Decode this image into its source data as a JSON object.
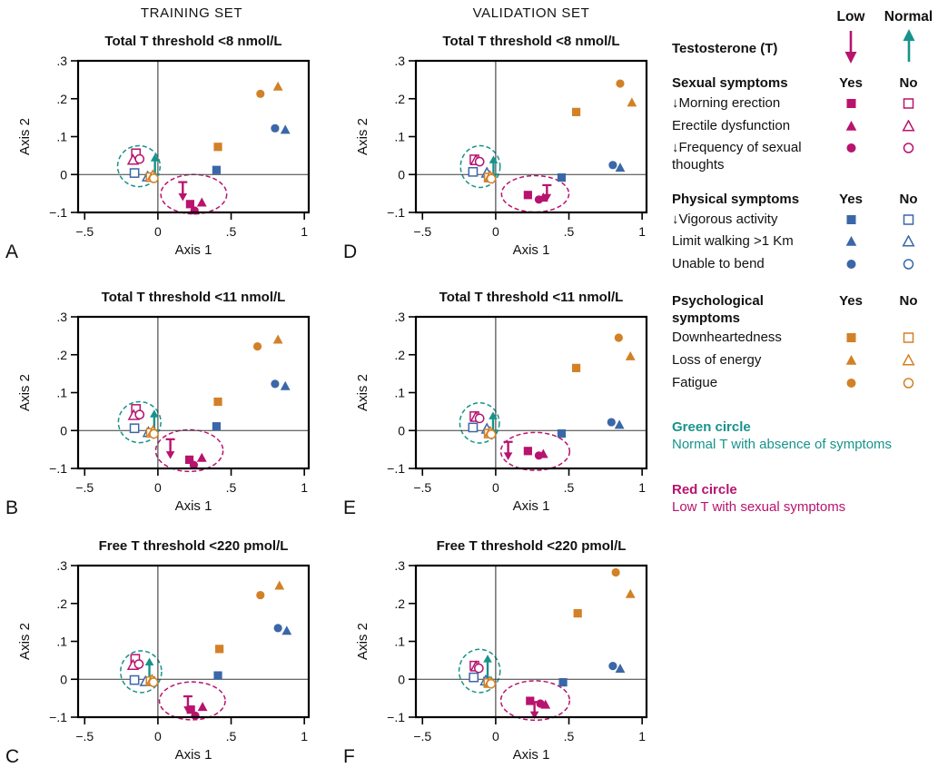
{
  "columns": {
    "training": "TRAINING SET",
    "validation": "VALIDATION SET"
  },
  "colors": {
    "pink": "#b8136e",
    "blue": "#3a67a8",
    "orange": "#d28127",
    "teal": "#17938b",
    "text": "#111111"
  },
  "legend": {
    "testosterone": {
      "label": "Testosterone (T)",
      "low": "Low",
      "normal": "Normal"
    },
    "groups": [
      {
        "title": "Sexual symptoms",
        "yes": "Yes",
        "no": "No",
        "color": "pink",
        "rows": [
          {
            "label": "↓Morning erection",
            "shape": "square"
          },
          {
            "label": "Erectile dysfunction",
            "shape": "triangle"
          },
          {
            "label": "↓Frequency of sexual thoughts",
            "shape": "circle"
          }
        ]
      },
      {
        "title": "Physical symptoms",
        "yes": "Yes",
        "no": "No",
        "color": "blue",
        "rows": [
          {
            "label": "↓Vigorous activity",
            "shape": "square"
          },
          {
            "label": "Limit walking >1 Km",
            "shape": "triangle"
          },
          {
            "label": "Unable to bend",
            "shape": "circle"
          }
        ]
      },
      {
        "title": "Psychological symptoms",
        "yes": "Yes",
        "no": "No",
        "color": "orange",
        "rows": [
          {
            "label": "Downheartedness",
            "shape": "square"
          },
          {
            "label": "Loss of energy",
            "shape": "triangle"
          },
          {
            "label": "Fatigue",
            "shape": "circle"
          }
        ]
      }
    ],
    "circles": [
      {
        "title": "Green circle",
        "desc": "Normal T with absence of symptoms",
        "color": "teal"
      },
      {
        "title": "Red circle",
        "desc": "Low T with sexual symptoms",
        "color": "pink"
      }
    ]
  },
  "axes": {
    "xlabel": "Axis 1",
    "ylabel": "Axis 2",
    "xlim": [
      -0.545,
      1.03
    ],
    "ylim": [
      -0.1,
      0.3
    ],
    "xticks": [
      {
        "v": -0.5,
        "label": "−.5"
      },
      {
        "v": 0,
        "label": "0"
      },
      {
        "v": 0.5,
        "label": ".5"
      },
      {
        "v": 1,
        "label": "1"
      }
    ],
    "yticks": [
      {
        "v": 0.3,
        "label": ".3"
      },
      {
        "v": 0.2,
        "label": ".2"
      },
      {
        "v": 0.1,
        "label": ".1"
      },
      {
        "v": 0,
        "label": "0"
      },
      {
        "v": -0.1,
        "label": "−.1"
      }
    ]
  },
  "point_format": [
    "x",
    "y",
    "color",
    "shape",
    "filled"
  ],
  "chart_data": [
    {
      "type": "scatter",
      "id": "A",
      "set": "training",
      "title": "Total T threshold <8 nmol/L",
      "points": [
        [
          0.7,
          0.213,
          "orange",
          "circle",
          1
        ],
        [
          0.82,
          0.232,
          "orange",
          "triangle",
          1
        ],
        [
          0.8,
          0.122,
          "blue",
          "circle",
          1
        ],
        [
          0.87,
          0.118,
          "blue",
          "triangle",
          1
        ],
        [
          0.41,
          0.073,
          "orange",
          "square",
          1
        ],
        [
          0.4,
          0.012,
          "blue",
          "square",
          1
        ],
        [
          0.22,
          -0.078,
          "pink",
          "square",
          1
        ],
        [
          0.3,
          -0.074,
          "pink",
          "triangle",
          1
        ],
        [
          0.25,
          -0.095,
          "pink",
          "circle",
          1
        ],
        [
          -0.15,
          0.056,
          "pink",
          "square",
          0
        ],
        [
          -0.17,
          0.038,
          "pink",
          "triangle",
          0
        ],
        [
          -0.125,
          0.041,
          "pink",
          "circle",
          0
        ],
        [
          -0.16,
          0.004,
          "blue",
          "square",
          0
        ],
        [
          -0.07,
          -0.006,
          "blue",
          "triangle",
          0
        ],
        [
          -0.05,
          -0.007,
          "orange",
          "square",
          0
        ],
        [
          -0.035,
          -0.003,
          "orange",
          "triangle",
          0
        ],
        [
          -0.028,
          -0.01,
          "orange",
          "circle",
          0
        ]
      ],
      "arrows": [
        {
          "x": -0.02,
          "from": 0.0,
          "to": 0.055,
          "color": "teal"
        },
        {
          "x": 0.17,
          "from": -0.02,
          "to": -0.07,
          "color": "pink"
        }
      ],
      "ellipses": [
        {
          "cx": -0.13,
          "cy": 0.022,
          "rx": 0.145,
          "ry": 0.054,
          "color": "teal"
        },
        {
          "cx": 0.245,
          "cy": -0.052,
          "rx": 0.225,
          "ry": 0.052,
          "color": "pink"
        }
      ]
    },
    {
      "type": "scatter",
      "id": "B",
      "set": "training",
      "title": "Total T threshold <11 nmol/L",
      "points": [
        [
          0.68,
          0.222,
          "orange",
          "circle",
          1
        ],
        [
          0.82,
          0.24,
          "orange",
          "triangle",
          1
        ],
        [
          0.8,
          0.123,
          "blue",
          "circle",
          1
        ],
        [
          0.87,
          0.117,
          "blue",
          "triangle",
          1
        ],
        [
          0.41,
          0.076,
          "orange",
          "square",
          1
        ],
        [
          0.4,
          0.011,
          "blue",
          "square",
          1
        ],
        [
          0.215,
          -0.077,
          "pink",
          "square",
          1
        ],
        [
          0.3,
          -0.072,
          "pink",
          "triangle",
          1
        ],
        [
          0.245,
          -0.091,
          "pink",
          "circle",
          1
        ],
        [
          -0.15,
          0.057,
          "pink",
          "square",
          0
        ],
        [
          -0.165,
          0.04,
          "pink",
          "triangle",
          0
        ],
        [
          -0.125,
          0.042,
          "pink",
          "circle",
          0
        ],
        [
          -0.16,
          0.006,
          "blue",
          "square",
          0
        ],
        [
          -0.065,
          -0.005,
          "blue",
          "triangle",
          0
        ],
        [
          -0.048,
          -0.006,
          "orange",
          "square",
          0
        ],
        [
          -0.033,
          -0.002,
          "orange",
          "triangle",
          0
        ],
        [
          -0.027,
          -0.009,
          "orange",
          "circle",
          0
        ]
      ],
      "arrows": [
        {
          "x": -0.025,
          "from": 0.0,
          "to": 0.055,
          "color": "teal"
        },
        {
          "x": 0.085,
          "from": -0.023,
          "to": -0.075,
          "color": "pink"
        }
      ],
      "ellipses": [
        {
          "cx": -0.125,
          "cy": 0.022,
          "rx": 0.145,
          "ry": 0.054,
          "color": "teal"
        },
        {
          "cx": 0.215,
          "cy": -0.053,
          "rx": 0.23,
          "ry": 0.055,
          "color": "pink"
        }
      ]
    },
    {
      "type": "scatter",
      "id": "C",
      "set": "training",
      "title": "Free T threshold <220 pmol/L",
      "points": [
        [
          0.7,
          0.222,
          "orange",
          "circle",
          1
        ],
        [
          0.83,
          0.247,
          "orange",
          "triangle",
          1
        ],
        [
          0.82,
          0.135,
          "blue",
          "circle",
          1
        ],
        [
          0.88,
          0.128,
          "blue",
          "triangle",
          1
        ],
        [
          0.42,
          0.08,
          "orange",
          "square",
          1
        ],
        [
          0.41,
          0.01,
          "blue",
          "square",
          1
        ],
        [
          0.225,
          -0.08,
          "pink",
          "square",
          1
        ],
        [
          0.305,
          -0.073,
          "pink",
          "triangle",
          1
        ],
        [
          0.255,
          -0.096,
          "pink",
          "circle",
          1
        ],
        [
          -0.155,
          0.054,
          "pink",
          "square",
          0
        ],
        [
          -0.17,
          0.037,
          "pink",
          "triangle",
          0
        ],
        [
          -0.13,
          0.04,
          "pink",
          "circle",
          0
        ],
        [
          -0.16,
          -0.002,
          "blue",
          "square",
          0
        ],
        [
          -0.085,
          -0.006,
          "blue",
          "triangle",
          0
        ],
        [
          -0.05,
          -0.005,
          "orange",
          "square",
          0
        ],
        [
          -0.04,
          -0.002,
          "orange",
          "triangle",
          0
        ],
        [
          -0.03,
          -0.008,
          "orange",
          "circle",
          0
        ]
      ],
      "arrows": [
        {
          "x": -0.058,
          "from": 0.002,
          "to": 0.057,
          "color": "teal"
        },
        {
          "x": 0.205,
          "from": -0.045,
          "to": -0.092,
          "color": "pink"
        }
      ],
      "ellipses": [
        {
          "cx": -0.115,
          "cy": 0.02,
          "rx": 0.14,
          "ry": 0.055,
          "color": "teal"
        },
        {
          "cx": 0.235,
          "cy": -0.057,
          "rx": 0.225,
          "ry": 0.05,
          "color": "pink"
        }
      ]
    },
    {
      "type": "scatter",
      "id": "D",
      "set": "validation",
      "title": "Total T threshold <8 nmol/L",
      "points": [
        [
          0.85,
          0.24,
          "orange",
          "circle",
          1
        ],
        [
          0.93,
          0.19,
          "orange",
          "triangle",
          1
        ],
        [
          0.55,
          0.165,
          "orange",
          "square",
          1
        ],
        [
          0.8,
          0.025,
          "blue",
          "circle",
          1
        ],
        [
          0.85,
          0.018,
          "blue",
          "triangle",
          1
        ],
        [
          0.45,
          -0.008,
          "blue",
          "square",
          1
        ],
        [
          0.22,
          -0.054,
          "pink",
          "square",
          1
        ],
        [
          0.295,
          -0.066,
          "pink",
          "circle",
          1
        ],
        [
          0.325,
          -0.061,
          "pink",
          "triangle",
          1
        ],
        [
          -0.145,
          0.04,
          "pink",
          "square",
          0
        ],
        [
          -0.135,
          0.037,
          "pink",
          "triangle",
          0
        ],
        [
          -0.11,
          0.034,
          "pink",
          "circle",
          0
        ],
        [
          -0.155,
          0.007,
          "blue",
          "square",
          0
        ],
        [
          -0.06,
          0.004,
          "blue",
          "triangle",
          0
        ],
        [
          -0.048,
          -0.008,
          "orange",
          "square",
          0
        ],
        [
          -0.038,
          -0.005,
          "orange",
          "triangle",
          0
        ],
        [
          -0.03,
          -0.011,
          "orange",
          "circle",
          0
        ]
      ],
      "arrows": [
        {
          "x": -0.015,
          "from": 0.0,
          "to": 0.05,
          "color": "teal"
        },
        {
          "x": 0.35,
          "from": -0.028,
          "to": -0.072,
          "color": "pink"
        }
      ],
      "ellipses": [
        {
          "cx": -0.105,
          "cy": 0.021,
          "rx": 0.135,
          "ry": 0.055,
          "color": "teal"
        },
        {
          "cx": 0.27,
          "cy": -0.051,
          "rx": 0.23,
          "ry": 0.048,
          "color": "pink"
        }
      ]
    },
    {
      "type": "scatter",
      "id": "E",
      "set": "validation",
      "title": "Total T threshold <11 nmol/L",
      "points": [
        [
          0.84,
          0.245,
          "orange",
          "circle",
          1
        ],
        [
          0.92,
          0.196,
          "orange",
          "triangle",
          1
        ],
        [
          0.55,
          0.165,
          "orange",
          "square",
          1
        ],
        [
          0.79,
          0.022,
          "blue",
          "circle",
          1
        ],
        [
          0.845,
          0.015,
          "blue",
          "triangle",
          1
        ],
        [
          0.45,
          -0.008,
          "blue",
          "square",
          1
        ],
        [
          0.22,
          -0.054,
          "pink",
          "square",
          1
        ],
        [
          0.295,
          -0.066,
          "pink",
          "circle",
          1
        ],
        [
          0.325,
          -0.062,
          "pink",
          "triangle",
          1
        ],
        [
          -0.145,
          0.038,
          "pink",
          "square",
          0
        ],
        [
          -0.135,
          0.035,
          "pink",
          "triangle",
          0
        ],
        [
          -0.11,
          0.032,
          "pink",
          "circle",
          0
        ],
        [
          -0.155,
          0.008,
          "blue",
          "square",
          0
        ],
        [
          -0.06,
          0.004,
          "blue",
          "triangle",
          0
        ],
        [
          -0.048,
          -0.008,
          "orange",
          "square",
          0
        ],
        [
          -0.038,
          -0.004,
          "orange",
          "triangle",
          0
        ],
        [
          -0.03,
          -0.01,
          "orange",
          "circle",
          0
        ]
      ],
      "arrows": [
        {
          "x": -0.018,
          "from": 0.0,
          "to": 0.05,
          "color": "teal"
        },
        {
          "x": 0.085,
          "from": -0.03,
          "to": -0.078,
          "color": "pink"
        }
      ],
      "ellipses": [
        {
          "cx": -0.11,
          "cy": 0.02,
          "rx": 0.135,
          "ry": 0.053,
          "color": "teal"
        },
        {
          "cx": 0.27,
          "cy": -0.055,
          "rx": 0.235,
          "ry": 0.05,
          "color": "pink"
        }
      ]
    },
    {
      "type": "scatter",
      "id": "F",
      "set": "validation",
      "title": "Free T threshold <220 pmol/L",
      "points": [
        [
          0.82,
          0.282,
          "orange",
          "circle",
          1
        ],
        [
          0.92,
          0.225,
          "orange",
          "triangle",
          1
        ],
        [
          0.56,
          0.174,
          "orange",
          "square",
          1
        ],
        [
          0.8,
          0.035,
          "blue",
          "circle",
          1
        ],
        [
          0.85,
          0.028,
          "blue",
          "triangle",
          1
        ],
        [
          0.46,
          -0.008,
          "blue",
          "square",
          1
        ],
        [
          0.235,
          -0.057,
          "pink",
          "square",
          1
        ],
        [
          0.305,
          -0.064,
          "pink",
          "circle",
          1
        ],
        [
          0.34,
          -0.067,
          "pink",
          "triangle",
          1
        ],
        [
          -0.145,
          0.036,
          "pink",
          "square",
          0
        ],
        [
          -0.135,
          0.033,
          "pink",
          "triangle",
          0
        ],
        [
          -0.115,
          0.029,
          "pink",
          "circle",
          0
        ],
        [
          -0.15,
          0.005,
          "blue",
          "square",
          0
        ],
        [
          -0.068,
          -0.004,
          "blue",
          "triangle",
          0
        ],
        [
          -0.05,
          -0.01,
          "orange",
          "square",
          0
        ],
        [
          -0.04,
          -0.007,
          "orange",
          "triangle",
          0
        ],
        [
          -0.032,
          -0.012,
          "orange",
          "circle",
          0
        ]
      ],
      "arrows": [
        {
          "x": -0.055,
          "from": 0.004,
          "to": 0.065,
          "color": "teal"
        },
        {
          "x": 0.265,
          "from": -0.06,
          "to": -0.105,
          "color": "pink"
        }
      ],
      "ellipses": [
        {
          "cx": -0.11,
          "cy": 0.022,
          "rx": 0.14,
          "ry": 0.057,
          "color": "teal"
        },
        {
          "cx": 0.27,
          "cy": -0.056,
          "rx": 0.235,
          "ry": 0.052,
          "color": "pink"
        }
      ]
    }
  ]
}
